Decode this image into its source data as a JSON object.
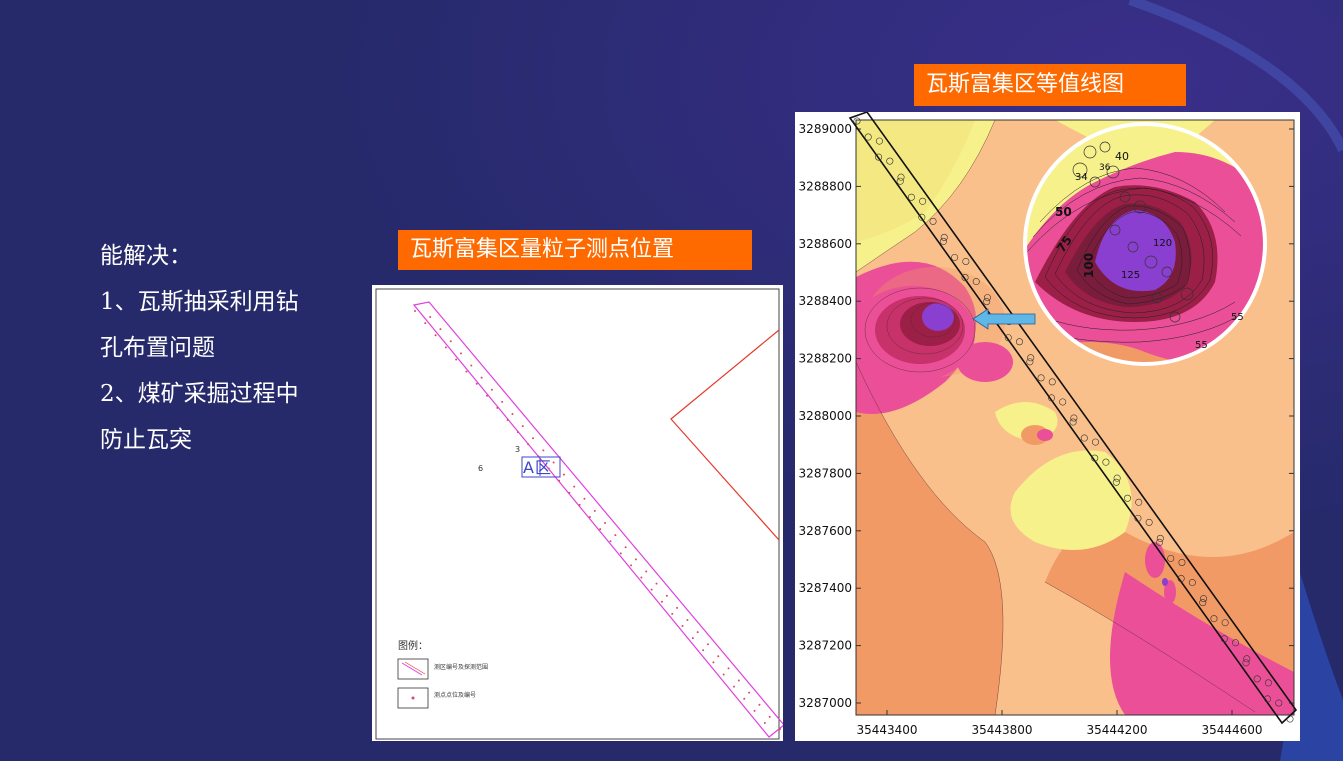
{
  "text_block": {
    "heading": "能解决：",
    "line1": "1、瓦斯抽采利用钻",
    "line2": "孔布置问题",
    "line3": "2、煤矿采掘过程中",
    "line4": "防止瓦突"
  },
  "left_figure": {
    "title": "瓦斯富集区量粒子测点位置",
    "area_label": "A区",
    "legend_title": "图例：",
    "legend_item1": "测区编号及探测范围",
    "legend_item2": "测点点位及编号",
    "point_3": "3",
    "point_6": "6"
  },
  "right_figure": {
    "title": "瓦斯富集区等值线图",
    "y_ticks": [
      "3289000",
      "3288800",
      "3288600",
      "3288400",
      "3288200",
      "3288000",
      "3287800",
      "3287600",
      "3287400",
      "3287200",
      "3287000"
    ],
    "x_ticks": [
      "35443400",
      "35443800",
      "35444200",
      "35444600"
    ],
    "zoom_labels": {
      "c40": "40",
      "c34": "34",
      "c36": "36",
      "c50": "50",
      "c75": "75",
      "c100": "100",
      "c120": "120",
      "c125": "125",
      "c55a": "55",
      "c55b": "55"
    }
  },
  "colors": {
    "background": "#262a6b",
    "tag": "#ff6a00",
    "contour_yellow": "#f7f18c",
    "contour_peach": "#f9c08c",
    "contour_orange": "#f29a66",
    "contour_pink": "#ea4f97",
    "contour_red": "#b5234f",
    "contour_purple": "#8a3fd0"
  }
}
